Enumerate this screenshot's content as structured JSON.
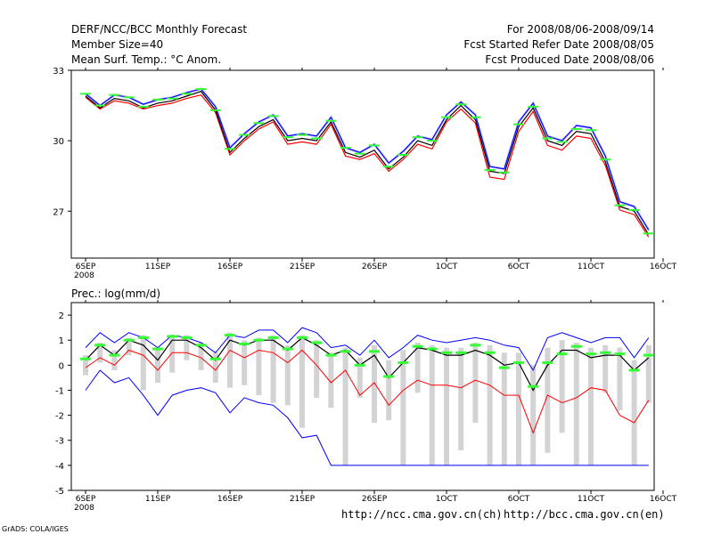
{
  "header": {
    "title": "DERF/NCC/BCC Monthly Forecast",
    "member": "Member Size=40",
    "variable": "Mean Surf. Temp.: °C Anom.",
    "period": "For 2008/08/06-2008/09/14",
    "started": "Fcst Started Refer Date 2008/08/05",
    "produced": "Fcst Produced Date 2008/08/06"
  },
  "footer": {
    "credit": "GrADS: COLA/IGES",
    "url1": "http://ncc.cma.gov.cn(ch)",
    "url2": "http://bcc.cma.gov.cn(en)"
  },
  "colors": {
    "ensemble_blue": "#0000ff",
    "ensemble_red": "#ff0000",
    "mean_black": "#000000",
    "marker_green": "#33ff33",
    "spread_gray": "#d3d3d6",
    "envelope_light": "#d0d0ff"
  },
  "chart_data": [
    {
      "type": "line",
      "title": "Mean Surf. Temp.: °C Anom.",
      "xlabel": "",
      "ylabel": "",
      "ylim": [
        25.0,
        33.0
      ],
      "yticks": [
        27,
        30,
        33
      ],
      "x_tick_labels": [
        "6SEP\n2008",
        "11SEP",
        "16SEP",
        "21SEP",
        "26SEP",
        "1OCT",
        "6OCT",
        "11OCT",
        "16OCT"
      ],
      "x": [
        0,
        1,
        2,
        3,
        4,
        5,
        6,
        7,
        8,
        9,
        10,
        11,
        12,
        13,
        14,
        15,
        16,
        17,
        18,
        19,
        20,
        21,
        22,
        23,
        24,
        25,
        26,
        27,
        28,
        29,
        30,
        31,
        32,
        33,
        34,
        35,
        36,
        37,
        38,
        39
      ],
      "series": [
        {
          "name": "mean",
          "values": [
            31.9,
            31.4,
            31.8,
            31.7,
            31.4,
            31.6,
            31.7,
            31.9,
            32.1,
            31.3,
            29.5,
            30.1,
            30.6,
            30.9,
            30.0,
            30.1,
            30.0,
            30.8,
            29.5,
            29.3,
            29.6,
            28.8,
            29.3,
            30.0,
            29.8,
            30.9,
            31.5,
            30.9,
            28.7,
            28.6,
            30.6,
            31.4,
            30.0,
            29.8,
            30.4,
            30.3,
            29.1,
            27.2,
            27.0,
            26.0
          ]
        },
        {
          "name": "max",
          "values": [
            32.0,
            31.5,
            31.95,
            31.85,
            31.55,
            31.75,
            31.85,
            32.05,
            32.2,
            31.45,
            29.7,
            30.3,
            30.8,
            31.1,
            30.2,
            30.3,
            30.2,
            31.0,
            29.7,
            29.5,
            29.85,
            29.05,
            29.55,
            30.2,
            30.05,
            31.1,
            31.65,
            31.1,
            28.9,
            28.8,
            30.8,
            31.6,
            30.2,
            30.0,
            30.65,
            30.55,
            29.35,
            27.4,
            27.2,
            26.2
          ]
        },
        {
          "name": "min",
          "values": [
            31.85,
            31.35,
            31.7,
            31.6,
            31.35,
            31.5,
            31.6,
            31.8,
            31.95,
            31.2,
            29.4,
            30.0,
            30.5,
            30.8,
            29.85,
            29.95,
            29.85,
            30.7,
            29.35,
            29.2,
            29.45,
            28.7,
            29.2,
            29.85,
            29.65,
            30.8,
            31.35,
            30.75,
            28.45,
            28.35,
            30.4,
            31.25,
            29.8,
            29.6,
            30.2,
            30.1,
            28.95,
            27.05,
            26.85,
            25.9
          ]
        },
        {
          "name": "markers",
          "values": [
            32.0,
            31.5,
            31.95,
            31.85,
            31.45,
            31.75,
            31.8,
            32.0,
            32.2,
            31.3,
            29.65,
            30.25,
            30.75,
            31.05,
            30.15,
            30.25,
            30.1,
            30.85,
            29.7,
            29.45,
            29.8,
            28.9,
            29.4,
            30.15,
            30.0,
            31.0,
            31.55,
            31.0,
            28.75,
            28.65,
            30.7,
            31.45,
            30.1,
            29.95,
            30.5,
            30.45,
            29.2,
            27.25,
            27.05,
            26.05
          ]
        }
      ]
    },
    {
      "type": "line",
      "title": "Prec.: log(mm/d)",
      "xlabel": "",
      "ylabel": "",
      "ylim": [
        -5,
        2.5
      ],
      "yticks": [
        -5,
        -4,
        -3,
        -2,
        -1,
        0,
        1,
        2
      ],
      "x_tick_labels": [
        "6SEP\n2008",
        "11SEP",
        "16SEP",
        "21SEP",
        "26SEP",
        "1OCT",
        "6OCT",
        "11OCT",
        "16OCT"
      ],
      "x": [
        0,
        1,
        2,
        3,
        4,
        5,
        6,
        7,
        8,
        9,
        10,
        11,
        12,
        13,
        14,
        15,
        16,
        17,
        18,
        19,
        20,
        21,
        22,
        23,
        24,
        25,
        26,
        27,
        28,
        29,
        30,
        31,
        32,
        33,
        34,
        35,
        36,
        37,
        38,
        39
      ],
      "series": [
        {
          "name": "mean",
          "values": [
            0.2,
            0.8,
            0.4,
            1.0,
            0.8,
            0.2,
            1.0,
            1.0,
            0.7,
            0.2,
            1.0,
            0.8,
            1.0,
            1.0,
            0.6,
            1.1,
            0.8,
            0.4,
            0.6,
            0.0,
            0.4,
            -0.5,
            0.1,
            0.7,
            0.6,
            0.4,
            0.4,
            0.6,
            0.4,
            0.0,
            0.1,
            -1.0,
            0.0,
            0.6,
            0.6,
            0.3,
            0.4,
            0.4,
            -0.2,
            0.3
          ]
        },
        {
          "name": "max",
          "values": [
            0.7,
            1.3,
            0.9,
            1.3,
            1.1,
            0.7,
            1.2,
            1.1,
            0.9,
            0.5,
            1.2,
            1.1,
            1.4,
            1.4,
            0.9,
            1.5,
            1.3,
            0.7,
            0.8,
            0.4,
            1.0,
            0.3,
            0.7,
            1.2,
            1.0,
            0.9,
            1.0,
            1.1,
            1.0,
            0.8,
            0.7,
            -0.2,
            1.1,
            1.3,
            1.1,
            0.9,
            1.1,
            1.1,
            0.3,
            1.1
          ]
        },
        {
          "name": "min",
          "values": [
            -0.1,
            0.3,
            0.0,
            0.6,
            0.4,
            -0.2,
            0.5,
            0.5,
            0.3,
            -0.2,
            0.6,
            0.3,
            0.6,
            0.5,
            0.1,
            0.6,
            0.0,
            -0.7,
            -0.2,
            -1.2,
            -0.7,
            -1.6,
            -1.0,
            -0.6,
            -0.8,
            -0.8,
            -0.9,
            -0.6,
            -0.8,
            -1.2,
            -1.2,
            -2.7,
            -1.2,
            -1.5,
            -1.3,
            -0.9,
            -1.0,
            -2.0,
            -2.3,
            -1.4
          ]
        },
        {
          "name": "lower_bound",
          "values": [
            -1.0,
            -0.2,
            -0.7,
            -0.5,
            -1.2,
            -2.0,
            -1.2,
            -1.0,
            -0.9,
            -1.1,
            -1.9,
            -1.3,
            -1.5,
            -1.6,
            -2.1,
            -2.9,
            -2.8,
            -4.0,
            -4.0,
            -4.0,
            -4.0,
            -4.0,
            -4.0,
            -4.0,
            -4.0,
            -4.0,
            -4.0,
            -4.0,
            -4.0,
            -4.0,
            -4.0,
            -4.0,
            -4.0,
            -4.0,
            -4.0,
            -4.0,
            -4.0,
            -4.0,
            -4.0,
            -4.0
          ]
        },
        {
          "name": "markers",
          "values": [
            0.25,
            0.8,
            0.4,
            1.0,
            1.1,
            0.65,
            1.15,
            1.1,
            0.8,
            0.25,
            1.2,
            0.85,
            1.0,
            1.1,
            0.65,
            1.1,
            0.9,
            0.4,
            0.55,
            0.0,
            0.55,
            -0.45,
            0.1,
            0.75,
            0.65,
            0.5,
            0.5,
            0.8,
            0.5,
            -0.1,
            0.1,
            -0.85,
            0.1,
            0.45,
            0.75,
            0.45,
            0.5,
            0.45,
            -0.2,
            0.4
          ]
        },
        {
          "name": "bar_top",
          "values": [
            0.4,
            0.9,
            0.6,
            1.1,
            1.2,
            0.7,
            1.2,
            1.2,
            0.9,
            0.5,
            1.3,
            1.0,
            1.1,
            1.2,
            0.8,
            1.2,
            1.0,
            0.5,
            0.7,
            0.3,
            0.8,
            0.2,
            0.6,
            0.9,
            0.8,
            0.7,
            0.7,
            0.9,
            0.8,
            0.5,
            0.5,
            0.0,
            0.7,
            1.0,
            0.9,
            0.7,
            0.8,
            0.7,
            0.2,
            0.8
          ]
        },
        {
          "name": "bar_bottom",
          "values": [
            -0.4,
            0.1,
            -0.2,
            0.4,
            -1.0,
            -0.7,
            -0.3,
            0.2,
            -0.2,
            -0.7,
            -0.9,
            -0.8,
            -1.2,
            -1.5,
            -1.6,
            -2.5,
            -1.3,
            -1.7,
            -4.0,
            -1.3,
            -2.3,
            -2.2,
            -4.0,
            -1.1,
            -4.0,
            -4.0,
            -3.4,
            -2.3,
            -4.0,
            -4.0,
            -4.0,
            -4.0,
            -3.5,
            -2.7,
            -4.0,
            -4.0,
            -1.1,
            -1.8,
            -4.0,
            -1.5
          ]
        }
      ]
    }
  ]
}
